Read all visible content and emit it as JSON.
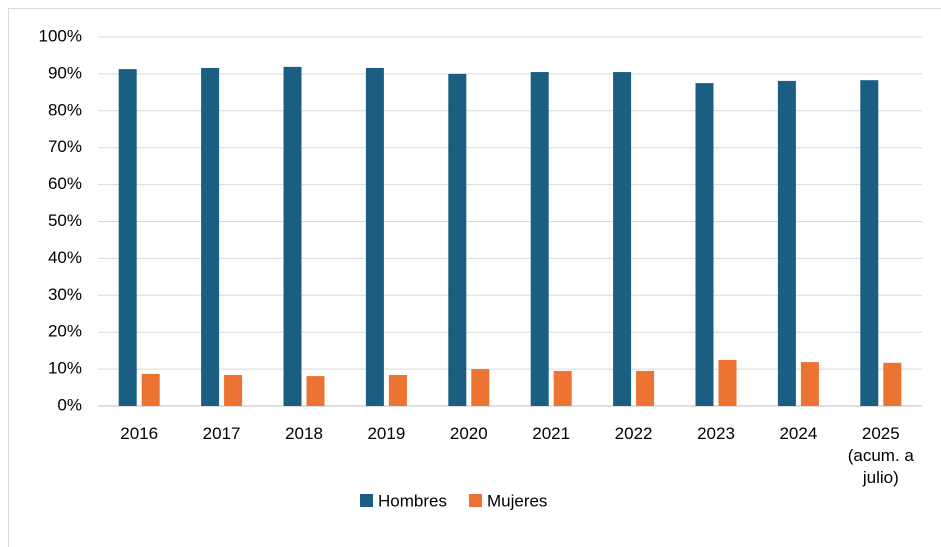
{
  "chart_data": {
    "type": "bar",
    "categories": [
      "2016",
      "2017",
      "2018",
      "2019",
      "2020",
      "2021",
      "2022",
      "2023",
      "2024",
      "2025 (acum. a julio)"
    ],
    "series": [
      {
        "name": "Hombres",
        "color": "#1a5f82",
        "values": [
          91.3,
          91.6,
          91.9,
          91.6,
          90.0,
          90.5,
          90.5,
          87.5,
          88.1,
          88.3
        ]
      },
      {
        "name": "Mujeres",
        "color": "#ed7332",
        "values": [
          8.7,
          8.4,
          8.1,
          8.4,
          10.0,
          9.5,
          9.5,
          12.5,
          11.9,
          11.7
        ]
      }
    ],
    "ylim": [
      0,
      100
    ],
    "yticks": [
      {
        "value": 0,
        "label": "0%"
      },
      {
        "value": 10,
        "label": "10%"
      },
      {
        "value": 20,
        "label": "20%"
      },
      {
        "value": 30,
        "label": "30%"
      },
      {
        "value": 40,
        "label": "40%"
      },
      {
        "value": 50,
        "label": "50%"
      },
      {
        "value": 60,
        "label": "60%"
      },
      {
        "value": 70,
        "label": "70%"
      },
      {
        "value": 80,
        "label": "80%"
      },
      {
        "value": 90,
        "label": "90%"
      },
      {
        "value": 100,
        "label": "100%"
      }
    ],
    "grid": true,
    "legend": "bottom"
  }
}
